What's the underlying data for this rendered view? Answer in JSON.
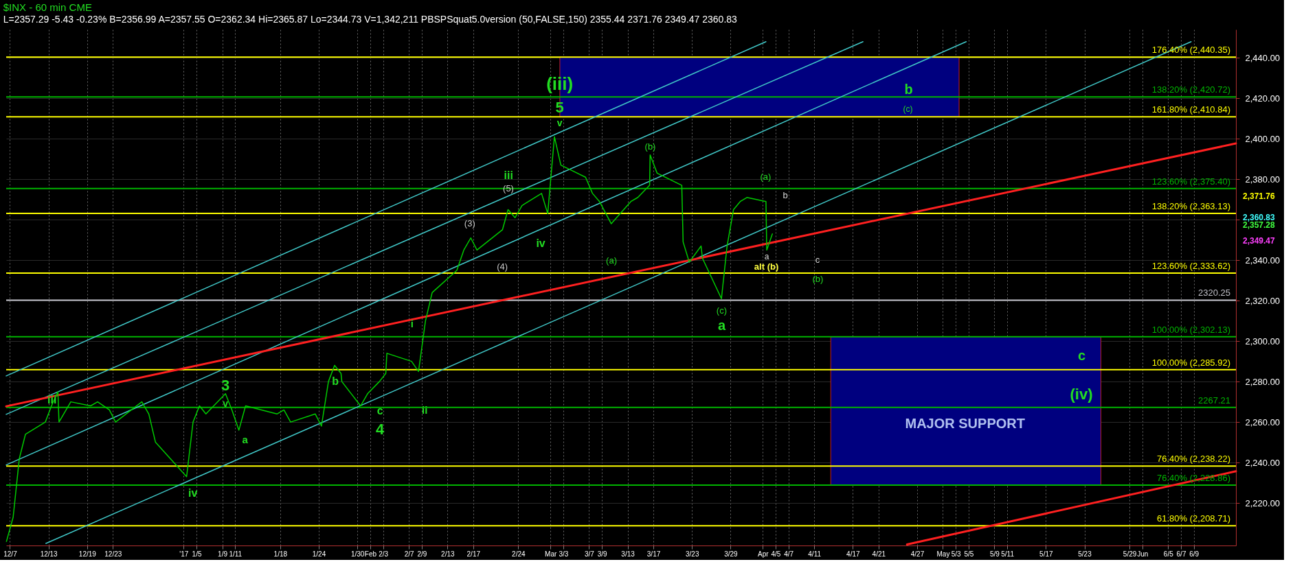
{
  "chart_data": {
    "type": "line",
    "title": "$INX - 60 min  CME",
    "subtitle": "L=2357.29  -5.43  -0.23%   B=2356.99   A=2357.55   O=2362.34   Hi=2365.87   Lo=2344.73   V=1,342,211   PBSPSquat5.0version (50,FALSE,150)   2355.44   2371.76   2349.47   2360.83",
    "xlim": [
      "2016-12-06T10:00",
      "2017-06-15T13:00"
    ],
    "ylim": [
      2199,
      2454
    ],
    "xticks": [
      {
        "value": "2016-12-07",
        "label": "12/7"
      },
      {
        "value": "2016-12-13",
        "label": "12/13"
      },
      {
        "value": "2016-12-19",
        "label": "12/19"
      },
      {
        "value": "2016-12-23",
        "label": "12/23"
      },
      {
        "value": "2017-01-03",
        "label": "'17"
      },
      {
        "value": "2017-01-05",
        "label": "1/5"
      },
      {
        "value": "2017-01-09",
        "label": "1/9"
      },
      {
        "value": "2017-01-11",
        "label": "1/11"
      },
      {
        "value": "2017-01-18",
        "label": "1/18"
      },
      {
        "value": "2017-01-24",
        "label": "1/24"
      },
      {
        "value": "2017-01-30",
        "label": "1/30"
      },
      {
        "value": "2017-02-01",
        "label": "Feb"
      },
      {
        "value": "2017-02-03",
        "label": "2/3"
      },
      {
        "value": "2017-02-07",
        "label": "2/7"
      },
      {
        "value": "2017-02-09",
        "label": "2/9"
      },
      {
        "value": "2017-02-13",
        "label": "2/13"
      },
      {
        "value": "2017-02-17",
        "label": "2/17"
      },
      {
        "value": "2017-02-24",
        "label": "2/24"
      },
      {
        "value": "2017-03-01",
        "label": "Mar"
      },
      {
        "value": "2017-03-03",
        "label": "3/3"
      },
      {
        "value": "2017-03-07",
        "label": "3/7"
      },
      {
        "value": "2017-03-09",
        "label": "3/9"
      },
      {
        "value": "2017-03-13",
        "label": "3/13"
      },
      {
        "value": "2017-03-17",
        "label": "3/17"
      },
      {
        "value": "2017-03-23",
        "label": "3/23"
      },
      {
        "value": "2017-03-29",
        "label": "3/29"
      },
      {
        "value": "2017-04-03",
        "label": "Apr"
      },
      {
        "value": "2017-04-05",
        "label": "4/5"
      },
      {
        "value": "2017-04-07",
        "label": "4/7"
      },
      {
        "value": "2017-04-11",
        "label": "4/11"
      },
      {
        "value": "2017-04-17",
        "label": "4/17"
      },
      {
        "value": "2017-04-21",
        "label": "4/21"
      },
      {
        "value": "2017-04-27",
        "label": "4/27"
      },
      {
        "value": "2017-05-01",
        "label": "May"
      },
      {
        "value": "2017-05-03",
        "label": "5/3"
      },
      {
        "value": "2017-05-05",
        "label": "5/5"
      },
      {
        "value": "2017-05-09",
        "label": "5/9"
      },
      {
        "value": "2017-05-11",
        "label": "5/11"
      },
      {
        "value": "2017-05-17",
        "label": "5/17"
      },
      {
        "value": "2017-05-23",
        "label": "5/23"
      },
      {
        "value": "2017-05-30",
        "label": "5/29"
      },
      {
        "value": "2017-06-01",
        "label": "Jun"
      },
      {
        "value": "2017-06-05",
        "label": "6/5"
      },
      {
        "value": "2017-06-07",
        "label": "6/7"
      },
      {
        "value": "2017-06-09",
        "label": "6/9"
      }
    ],
    "yticks": [
      {
        "value": 2220,
        "label": "2,220.00"
      },
      {
        "value": 2240,
        "label": "2,240.00"
      },
      {
        "value": 2260,
        "label": "2,260.00"
      },
      {
        "value": 2280,
        "label": "2,280.00"
      },
      {
        "value": 2300,
        "label": "2,300.00"
      },
      {
        "value": 2320,
        "label": "2,320.00"
      },
      {
        "value": 2340,
        "label": "2,340.00"
      },
      {
        "value": 2360,
        "label": null
      },
      {
        "value": 2380,
        "label": "2,380.00"
      },
      {
        "value": 2400,
        "label": "2,400.00"
      },
      {
        "value": 2420,
        "label": "2,420.00"
      },
      {
        "value": 2440,
        "label": "2,440.00"
      }
    ],
    "grid": true,
    "series": [
      {
        "type": "line",
        "color": "#40c8c8",
        "x": [
          "2016-12-06T10:00",
          "2017-04-03T12:00"
        ],
        "values": [
          2282.8,
          2448
        ]
      },
      {
        "type": "line",
        "color": "#40c8c8",
        "x": [
          "2016-12-06T10:00",
          "2017-04-18T14:00"
        ],
        "values": [
          2263.8,
          2448
        ]
      },
      {
        "type": "line",
        "color": "#40c8c8",
        "x": [
          "2016-12-06T10:00",
          "2017-05-04T15:00"
        ],
        "values": [
          2238.8,
          2448
        ]
      },
      {
        "type": "line",
        "color": "#40c8c8",
        "x": [
          "2016-12-12T14:00",
          "2017-06-08T14:00"
        ],
        "values": [
          2200,
          2448
        ]
      },
      {
        "type": "line",
        "color": "#ff2020",
        "x": [
          "2016-12-06T10:00",
          "2017-06-15T13:00"
        ],
        "values": [
          2267.8,
          2397.7
        ]
      },
      {
        "type": "line",
        "color": "#ff2020",
        "x": [
          "2017-04-25T10:00",
          "2017-06-15T13:00"
        ],
        "values": [
          2199.5,
          2235.7
        ]
      },
      {
        "color": "#00cc00",
        "x": [
          "2016-12-06T11:00",
          "2016-12-07T12:00",
          "2016-12-08T11:00",
          "2016-12-09T10:00",
          "2016-12-12T12:00",
          "2016-12-13T11:00",
          "2016-12-14T11:00",
          "2016-12-14T15:00",
          "2016-12-16T11:00",
          "2016-12-19T13:00",
          "2016-12-20T15:00",
          "2016-12-22T11:00",
          "2016-12-23T10:00",
          "2016-12-27T12:00",
          "2016-12-28T14:00",
          "2016-12-29T15:00",
          "2017-01-03T11:00",
          "2017-01-04T11:00",
          "2017-01-05T11:00",
          "2017-01-06T11:00",
          "2017-01-09T12:00",
          "2017-01-10T12:00",
          "2017-01-11T14:00",
          "2017-01-12T15:00",
          "2017-01-17T12:00",
          "2017-01-18T14:00",
          "2017-01-19T15:00",
          "2017-01-23T11:00",
          "2017-01-24T10:00",
          "2017-01-25T12:00",
          "2017-01-26T11:00",
          "2017-01-27T11:00",
          "2017-01-27T14:00",
          "2017-01-30T12:00",
          "2017-01-31T14:00",
          "2017-02-02T10:00",
          "2017-02-03T10:00",
          "2017-02-03T14:00",
          "2017-02-07T10:00",
          "2017-02-08T12:00",
          "2017-02-09T14:00",
          "2017-02-10T15:00",
          "2017-02-14T11:00",
          "2017-02-15T13:00",
          "2017-02-16T15:00",
          "2017-02-17T14:00",
          "2017-02-21T13:00",
          "2017-02-22T10:00",
          "2017-02-23T12:00",
          "2017-02-24T14:00",
          "2017-02-27T15:00",
          "2017-02-28T14:00",
          "2017-03-01T15:00",
          "2017-03-02T15:00",
          "2017-03-06T11:00",
          "2017-03-07T13:00",
          "2017-03-08T15:00",
          "2017-03-10T11:00",
          "2017-03-13T12:00",
          "2017-03-14T14:00",
          "2017-03-16T10:00",
          "2017-03-16T12:00",
          "2017-03-17T14:00",
          "2017-03-21T10:00",
          "2017-03-21T15:00",
          "2017-03-22T14:00",
          "2017-03-24T10:00",
          "2017-03-24T15:00",
          "2017-03-27T14:00",
          "2017-03-28T11:00",
          "2017-03-29T11:00",
          "2017-03-30T12:00",
          "2017-03-31T13:00",
          "2017-04-03T12:00",
          "2017-04-03T15:00",
          "2017-04-04T12:00"
        ],
        "values": [
          2201,
          2213,
          2242,
          2254,
          2260,
          2268,
          2275,
          2260,
          2270,
          2268,
          2270,
          2266,
          2260,
          2270,
          2264,
          2250,
          2233,
          2260,
          2268,
          2264,
          2274,
          2266,
          2256,
          2268,
          2264,
          2266,
          2260,
          2264,
          2258,
          2280,
          2288,
          2284,
          2280,
          2268,
          2274,
          2280,
          2284,
          2294,
          2290,
          2285,
          2310,
          2324,
          2335,
          2345,
          2351,
          2345,
          2355,
          2365,
          2361,
          2367,
          2373,
          2363,
          2401,
          2387,
          2381,
          2373,
          2369,
          2358,
          2369,
          2371,
          2377,
          2392,
          2383,
          2377,
          2349,
          2339,
          2347,
          2341,
          2321,
          2347,
          2365,
          2369,
          2371,
          2369,
          2345,
          2353
        ]
      }
    ],
    "bands": [
      {
        "axis": "y",
        "from": 2410.84,
        "to": 2440.35,
        "color": "#00007f"
      },
      {
        "axis": "y",
        "from": 2228.86,
        "to": 2302.13,
        "color": "#00007f"
      }
    ],
    "ref_lines": [
      {
        "axis": "y",
        "value": 2440.35,
        "label": "176.40% (2,440.35)",
        "color": "#ffff00"
      },
      {
        "axis": "y",
        "value": 2420.72,
        "label": "138.20% (2,420.72)",
        "color": "#00b400"
      },
      {
        "axis": "y",
        "value": 2410.84,
        "label": "161.80% (2,410.84)",
        "color": "#ffff00"
      },
      {
        "axis": "y",
        "value": 2375.4,
        "label": "123.60% (2,375.40)",
        "color": "#00b400"
      },
      {
        "axis": "y",
        "value": 2363.13,
        "label": "138.20% (2,363.13)",
        "color": "#ffff00"
      },
      {
        "axis": "y",
        "value": 2333.62,
        "label": "123.60% (2,333.62)",
        "color": "#ffff00"
      },
      {
        "axis": "y",
        "value": 2320.25,
        "label": "2320.25",
        "color": "#c0c0c8"
      },
      {
        "axis": "y",
        "value": 2302.13,
        "label": "100.00% (2,302.13)",
        "color": "#00b400"
      },
      {
        "axis": "y",
        "value": 2285.92,
        "label": "100.00% (2,285.92)",
        "color": "#ffff00"
      },
      {
        "axis": "y",
        "value": 2267.21,
        "label": "2267.21",
        "color": "#00b400"
      },
      {
        "axis": "y",
        "value": 2238.22,
        "label": "76.40% (2,238.22)",
        "color": "#ffff00"
      },
      {
        "axis": "y",
        "value": 2228.86,
        "label": "76.40% (2,228.86)",
        "color": "#00b400"
      },
      {
        "axis": "y",
        "value": 2208.71,
        "label": "61.80% (2,208.71)",
        "color": "#ffff00"
      }
    ],
    "annotations": [
      "(iii)",
      "5",
      "v",
      "iii",
      "3",
      "v",
      "iv",
      "a",
      "b",
      "c",
      "4",
      "i",
      "ii",
      "(3)",
      "(4)",
      "(5)",
      "iii",
      "iv",
      "(a)",
      "(b)",
      "(a)",
      "b",
      "a",
      "alt (b)",
      "c",
      "(b)",
      "(c)",
      "a",
      "b",
      "(c)",
      "c",
      "(iv)",
      "MAJOR SUPPORT",
      "2,371.76",
      "2,360.83",
      "2,357.28",
      "2,349.47"
    ]
  }
}
